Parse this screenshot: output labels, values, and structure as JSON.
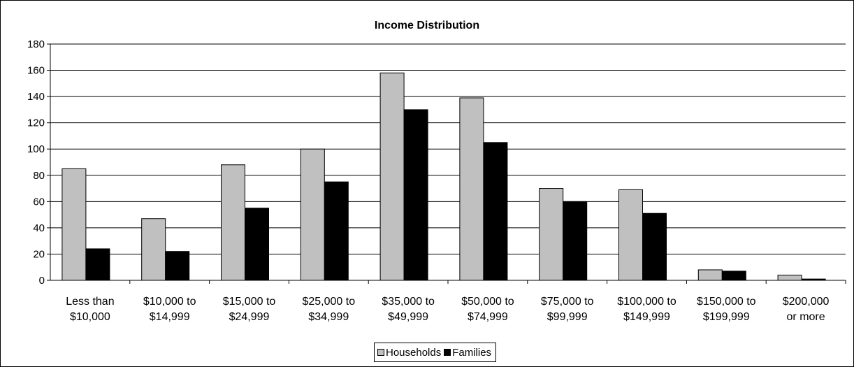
{
  "chart_data": {
    "type": "bar",
    "title": "Income Distribution",
    "xlabel": "",
    "ylabel": "",
    "ylim": [
      0,
      180
    ],
    "yticks": [
      0,
      20,
      40,
      60,
      80,
      100,
      120,
      140,
      160,
      180
    ],
    "grid": true,
    "legend_position": "bottom",
    "categories": [
      [
        "Less than",
        "$10,000"
      ],
      [
        "$10,000 to",
        "$14,999"
      ],
      [
        "$15,000 to",
        "$24,999"
      ],
      [
        "$25,000  to",
        "$34,999"
      ],
      [
        "$35,000 to",
        "$49,999"
      ],
      [
        "$50,000 to",
        "$74,999"
      ],
      [
        "$75,000 to",
        "$99,999"
      ],
      [
        "$100,000 to",
        "$149,999"
      ],
      [
        "$150,000 to",
        "$199,999"
      ],
      [
        "$200,000",
        "or more"
      ]
    ],
    "series": [
      {
        "name": "Households",
        "color": "#c0c0c0",
        "values": [
          85,
          47,
          88,
          100,
          158,
          139,
          70,
          69,
          8,
          4
        ]
      },
      {
        "name": "Families",
        "color": "#000000",
        "values": [
          24,
          22,
          55,
          75,
          130,
          105,
          60,
          51,
          7,
          1
        ]
      }
    ]
  }
}
